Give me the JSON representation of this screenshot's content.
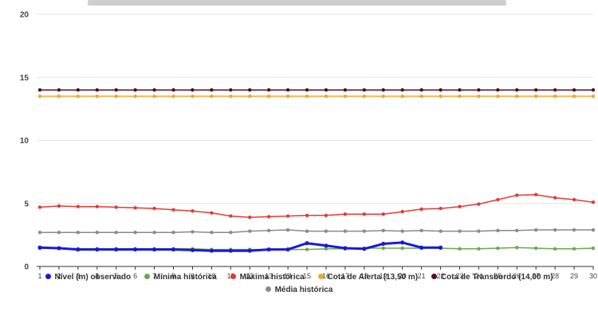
{
  "chart_data": {
    "type": "line",
    "title": "",
    "xlabel": "",
    "ylabel": "",
    "x": [
      1,
      2,
      3,
      4,
      5,
      6,
      7,
      8,
      9,
      10,
      11,
      12,
      13,
      14,
      15,
      16,
      17,
      18,
      19,
      20,
      21,
      22,
      23,
      24,
      25,
      26,
      27,
      28,
      29,
      30
    ],
    "yticks": [
      0,
      5,
      10,
      15,
      20
    ],
    "ylim": [
      0,
      20
    ],
    "grid": true,
    "legend_position": "bottom",
    "series": [
      {
        "name": "Nível (m) observado",
        "color": "#1a1adb",
        "width": 3,
        "values": [
          1.5,
          1.45,
          1.35,
          1.35,
          1.35,
          1.35,
          1.35,
          1.35,
          1.3,
          1.25,
          1.25,
          1.25,
          1.35,
          1.35,
          1.85,
          1.65,
          1.45,
          1.4,
          1.8,
          1.9,
          1.5,
          1.5,
          null,
          null,
          null,
          null,
          null,
          null,
          null,
          null
        ]
      },
      {
        "name": "Mínima histórica",
        "color": "#6aa84f",
        "width": 1.5,
        "values": [
          1.45,
          1.45,
          1.4,
          1.4,
          1.4,
          1.4,
          1.4,
          1.4,
          1.4,
          1.35,
          1.35,
          1.35,
          1.35,
          1.35,
          1.35,
          1.4,
          1.4,
          1.45,
          1.45,
          1.45,
          1.45,
          1.45,
          1.4,
          1.4,
          1.45,
          1.5,
          1.45,
          1.4,
          1.4,
          1.45
        ]
      },
      {
        "name": "Máxima histórica",
        "color": "#e53935",
        "width": 1.5,
        "values": [
          4.7,
          4.8,
          4.75,
          4.75,
          4.7,
          4.65,
          4.6,
          4.5,
          4.4,
          4.25,
          4.0,
          3.9,
          3.95,
          4.0,
          4.05,
          4.05,
          4.15,
          4.15,
          4.15,
          4.35,
          4.55,
          4.6,
          4.75,
          4.95,
          5.3,
          5.65,
          5.7,
          5.45,
          5.3,
          5.1
        ]
      },
      {
        "name": "Cota de Alerta (13,50 m)",
        "color": "#f1a72a",
        "width": 1.5,
        "values": [
          13.5,
          13.5,
          13.5,
          13.5,
          13.5,
          13.5,
          13.5,
          13.5,
          13.5,
          13.5,
          13.5,
          13.5,
          13.5,
          13.5,
          13.5,
          13.5,
          13.5,
          13.5,
          13.5,
          13.5,
          13.5,
          13.5,
          13.5,
          13.5,
          13.5,
          13.5,
          13.5,
          13.5,
          13.5,
          13.5
        ]
      },
      {
        "name": "Cota de Transbordo (14,00 m)",
        "color": "#5b0d1f",
        "width": 1.5,
        "values": [
          14,
          14,
          14,
          14,
          14,
          14,
          14,
          14,
          14,
          14,
          14,
          14,
          14,
          14,
          14,
          14,
          14,
          14,
          14,
          14,
          14,
          14,
          14,
          14,
          14,
          14,
          14,
          14,
          14,
          14
        ]
      },
      {
        "name": "Média histórica",
        "color": "#8a8a8a",
        "width": 1.5,
        "values": [
          2.7,
          2.7,
          2.7,
          2.7,
          2.7,
          2.7,
          2.7,
          2.7,
          2.75,
          2.7,
          2.7,
          2.8,
          2.85,
          2.9,
          2.8,
          2.8,
          2.8,
          2.8,
          2.85,
          2.8,
          2.85,
          2.8,
          2.8,
          2.8,
          2.85,
          2.85,
          2.9,
          2.9,
          2.9,
          2.9
        ]
      }
    ]
  }
}
